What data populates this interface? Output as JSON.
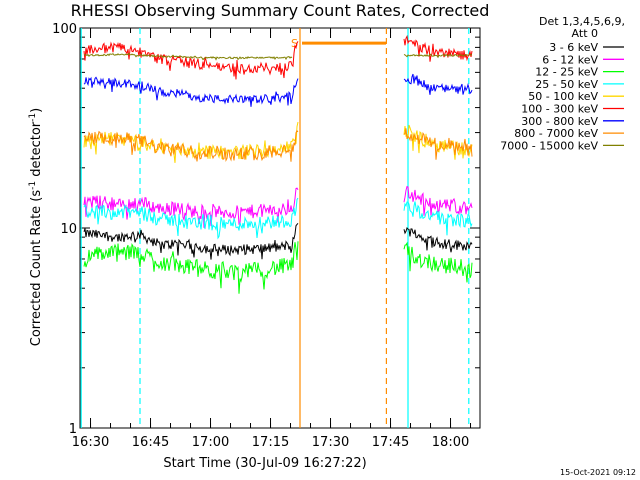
{
  "chart_data": {
    "type": "line",
    "title": "RHESSI Observing Summary Count Rates, Corrected",
    "xlabel": "Start Time (30-Jul-09 16:27:22)",
    "ylabel": "Corrected Count Rate (s",
    "ylabel_sup1": "-1",
    "ylabel_mid": " detector",
    "ylabel_sup2": "-1",
    "ylabel_end": ")",
    "yscale": "log",
    "ylim": [
      1,
      100
    ],
    "y_ticks": [
      {
        "value": 1,
        "label": "1"
      },
      {
        "value": 10,
        "label": "10"
      },
      {
        "value": 100,
        "label": "100"
      }
    ],
    "xlim_minutes": [
      0,
      100
    ],
    "x_ticks": [
      {
        "minute": 2.63,
        "label": "16:30"
      },
      {
        "minute": 17.63,
        "label": "16:45"
      },
      {
        "minute": 32.63,
        "label": "17:00"
      },
      {
        "minute": 47.63,
        "label": "17:15"
      },
      {
        "minute": 62.63,
        "label": "17:30"
      },
      {
        "minute": 77.63,
        "label": "17:45"
      },
      {
        "minute": 92.63,
        "label": "18:00"
      }
    ],
    "legend_header_1": "Det 1,3,4,5,6,9,",
    "legend_header_2": "Att 0",
    "legend_position": "right",
    "series": [
      {
        "name": "3 - 6 keV",
        "color": "#000000",
        "data": [
          [
            1,
            9.4
          ],
          [
            5,
            9.2
          ],
          [
            10,
            9.0
          ],
          [
            15,
            9.3
          ],
          [
            20,
            8.2
          ],
          [
            25,
            8.4
          ],
          [
            30,
            8.0
          ],
          [
            35,
            7.8
          ],
          [
            40,
            7.8
          ],
          [
            45,
            7.9
          ],
          [
            50,
            8.0
          ],
          [
            53,
            8.3
          ],
          [
            54.5,
            10.5
          ]
        ],
        "data_after": [
          [
            81,
            10
          ],
          [
            85,
            9.0
          ],
          [
            90,
            8.4
          ],
          [
            95,
            8.2
          ],
          [
            98,
            8.2
          ]
        ]
      },
      {
        "name": "6 - 12 keV",
        "color": "#ff00ff",
        "data": [
          [
            1,
            13.5
          ],
          [
            5,
            13.5
          ],
          [
            10,
            13.0
          ],
          [
            15,
            13.5
          ],
          [
            20,
            12.5
          ],
          [
            25,
            12.5
          ],
          [
            30,
            12.0
          ],
          [
            35,
            12.0
          ],
          [
            40,
            12.0
          ],
          [
            45,
            12.2
          ],
          [
            50,
            12.3
          ],
          [
            53,
            12.5
          ],
          [
            54.5,
            16
          ]
        ],
        "data_after": [
          [
            81,
            15.5
          ],
          [
            85,
            14.0
          ],
          [
            90,
            13.0
          ],
          [
            95,
            12.8
          ],
          [
            98,
            12.5
          ]
        ]
      },
      {
        "name": "12 - 25 keV",
        "color": "#00ff00",
        "data": [
          [
            1,
            7.0
          ],
          [
            5,
            7.5
          ],
          [
            10,
            7.5
          ],
          [
            15,
            7.5
          ],
          [
            20,
            6.8
          ],
          [
            25,
            6.5
          ],
          [
            30,
            6.3
          ],
          [
            35,
            6.0
          ],
          [
            40,
            6.0
          ],
          [
            45,
            6.2
          ],
          [
            50,
            6.4
          ],
          [
            53,
            6.5
          ],
          [
            54.5,
            9.0
          ]
        ],
        "data_after": [
          [
            81,
            7.8
          ],
          [
            85,
            7.0
          ],
          [
            90,
            6.6
          ],
          [
            95,
            6.4
          ],
          [
            98,
            6.3
          ]
        ]
      },
      {
        "name": "25 - 50 keV",
        "color": "#00ffff",
        "data": [
          [
            1,
            12.2
          ],
          [
            5,
            12.0
          ],
          [
            10,
            12.0
          ],
          [
            15,
            12.0
          ],
          [
            20,
            11.0
          ],
          [
            25,
            11.0
          ],
          [
            30,
            10.5
          ],
          [
            35,
            10.5
          ],
          [
            40,
            10.5
          ],
          [
            45,
            10.7
          ],
          [
            50,
            10.8
          ],
          [
            53,
            11.0
          ],
          [
            54.5,
            14
          ]
        ],
        "data_after": [
          [
            81,
            13
          ],
          [
            85,
            12.0
          ],
          [
            90,
            11.2
          ],
          [
            95,
            11.0
          ],
          [
            98,
            10.8
          ]
        ]
      },
      {
        "name": "50 - 100 keV",
        "color": "#ffd700",
        "data": [
          [
            1,
            27
          ],
          [
            5,
            28
          ],
          [
            10,
            28
          ],
          [
            15,
            27
          ],
          [
            20,
            25
          ],
          [
            25,
            25
          ],
          [
            30,
            24
          ],
          [
            35,
            24
          ],
          [
            40,
            24
          ],
          [
            45,
            24.5
          ],
          [
            50,
            25
          ],
          [
            53,
            25.5
          ],
          [
            54.5,
            32
          ]
        ],
        "data_after": [
          [
            81,
            31
          ],
          [
            85,
            28
          ],
          [
            90,
            26
          ],
          [
            95,
            25
          ],
          [
            98,
            24.5
          ]
        ]
      },
      {
        "name": "100 - 300 keV",
        "color": "#ff0000",
        "data": [
          [
            1,
            78
          ],
          [
            5,
            79
          ],
          [
            10,
            80
          ],
          [
            15,
            76
          ],
          [
            20,
            70
          ],
          [
            25,
            68
          ],
          [
            30,
            66
          ],
          [
            35,
            64
          ],
          [
            40,
            63
          ],
          [
            45,
            63
          ],
          [
            50,
            64
          ],
          [
            53,
            66
          ],
          [
            54.5,
            90
          ]
        ],
        "data_after": [
          [
            81,
            88
          ],
          [
            85,
            80
          ],
          [
            90,
            75
          ],
          [
            95,
            74
          ],
          [
            98,
            73
          ]
        ]
      },
      {
        "name": "300 - 800 keV",
        "color": "#0000ff",
        "data": [
          [
            1,
            54
          ],
          [
            5,
            54
          ],
          [
            10,
            53
          ],
          [
            15,
            52
          ],
          [
            20,
            48
          ],
          [
            25,
            47
          ],
          [
            30,
            45
          ],
          [
            35,
            44
          ],
          [
            40,
            44
          ],
          [
            45,
            44
          ],
          [
            50,
            45
          ],
          [
            53,
            46
          ],
          [
            54.5,
            58
          ]
        ],
        "data_after": [
          [
            81,
            57
          ],
          [
            85,
            53
          ],
          [
            90,
            50
          ],
          [
            95,
            49
          ],
          [
            98,
            48
          ]
        ]
      },
      {
        "name": "800 - 7000 keV",
        "color": "#ff8c00",
        "data": [
          [
            1,
            28
          ],
          [
            5,
            28
          ],
          [
            10,
            28
          ],
          [
            15,
            27.5
          ],
          [
            20,
            25
          ],
          [
            25,
            24.5
          ],
          [
            30,
            24
          ],
          [
            35,
            24
          ],
          [
            40,
            23.5
          ],
          [
            45,
            24
          ],
          [
            50,
            24.5
          ],
          [
            53,
            25
          ],
          [
            54.5,
            30
          ]
        ],
        "data_after": [
          [
            81,
            30
          ],
          [
            85,
            28
          ],
          [
            90,
            26
          ],
          [
            95,
            25
          ],
          [
            98,
            24.5
          ]
        ]
      },
      {
        "name": "7000 - 15000 keV",
        "color": "#808000",
        "data": [
          [
            1,
            73
          ],
          [
            5,
            73
          ],
          [
            10,
            74
          ],
          [
            15,
            73
          ],
          [
            20,
            72
          ],
          [
            25,
            72
          ],
          [
            30,
            71
          ],
          [
            35,
            71
          ],
          [
            40,
            71
          ],
          [
            45,
            71
          ],
          [
            50,
            71
          ],
          [
            53,
            71.5
          ]
        ],
        "data_after": [
          [
            81,
            73
          ],
          [
            85,
            73
          ],
          [
            90,
            73
          ],
          [
            95,
            73
          ],
          [
            98,
            73
          ]
        ]
      }
    ],
    "attenuator_state_saa_bar": {
      "label": "S",
      "color": "#ff8c00",
      "start": 55.5,
      "end": 76.5,
      "value": 84
    },
    "vertical_markers": [
      {
        "minute": 0.3,
        "color": "#00ffff",
        "style": "solid"
      },
      {
        "minute": 15.0,
        "color": "#00ffff",
        "style": "dashed"
      },
      {
        "minute": 55.0,
        "color": "#ff8c00",
        "style": "solid"
      },
      {
        "minute": 76.6,
        "color": "#ff8c00",
        "style": "dashed"
      },
      {
        "minute": 82.0,
        "color": "#00ffff",
        "style": "solid"
      },
      {
        "minute": 97.2,
        "color": "#00ffff",
        "style": "dashed"
      }
    ],
    "footer": "15-Oct-2021 09:12"
  }
}
